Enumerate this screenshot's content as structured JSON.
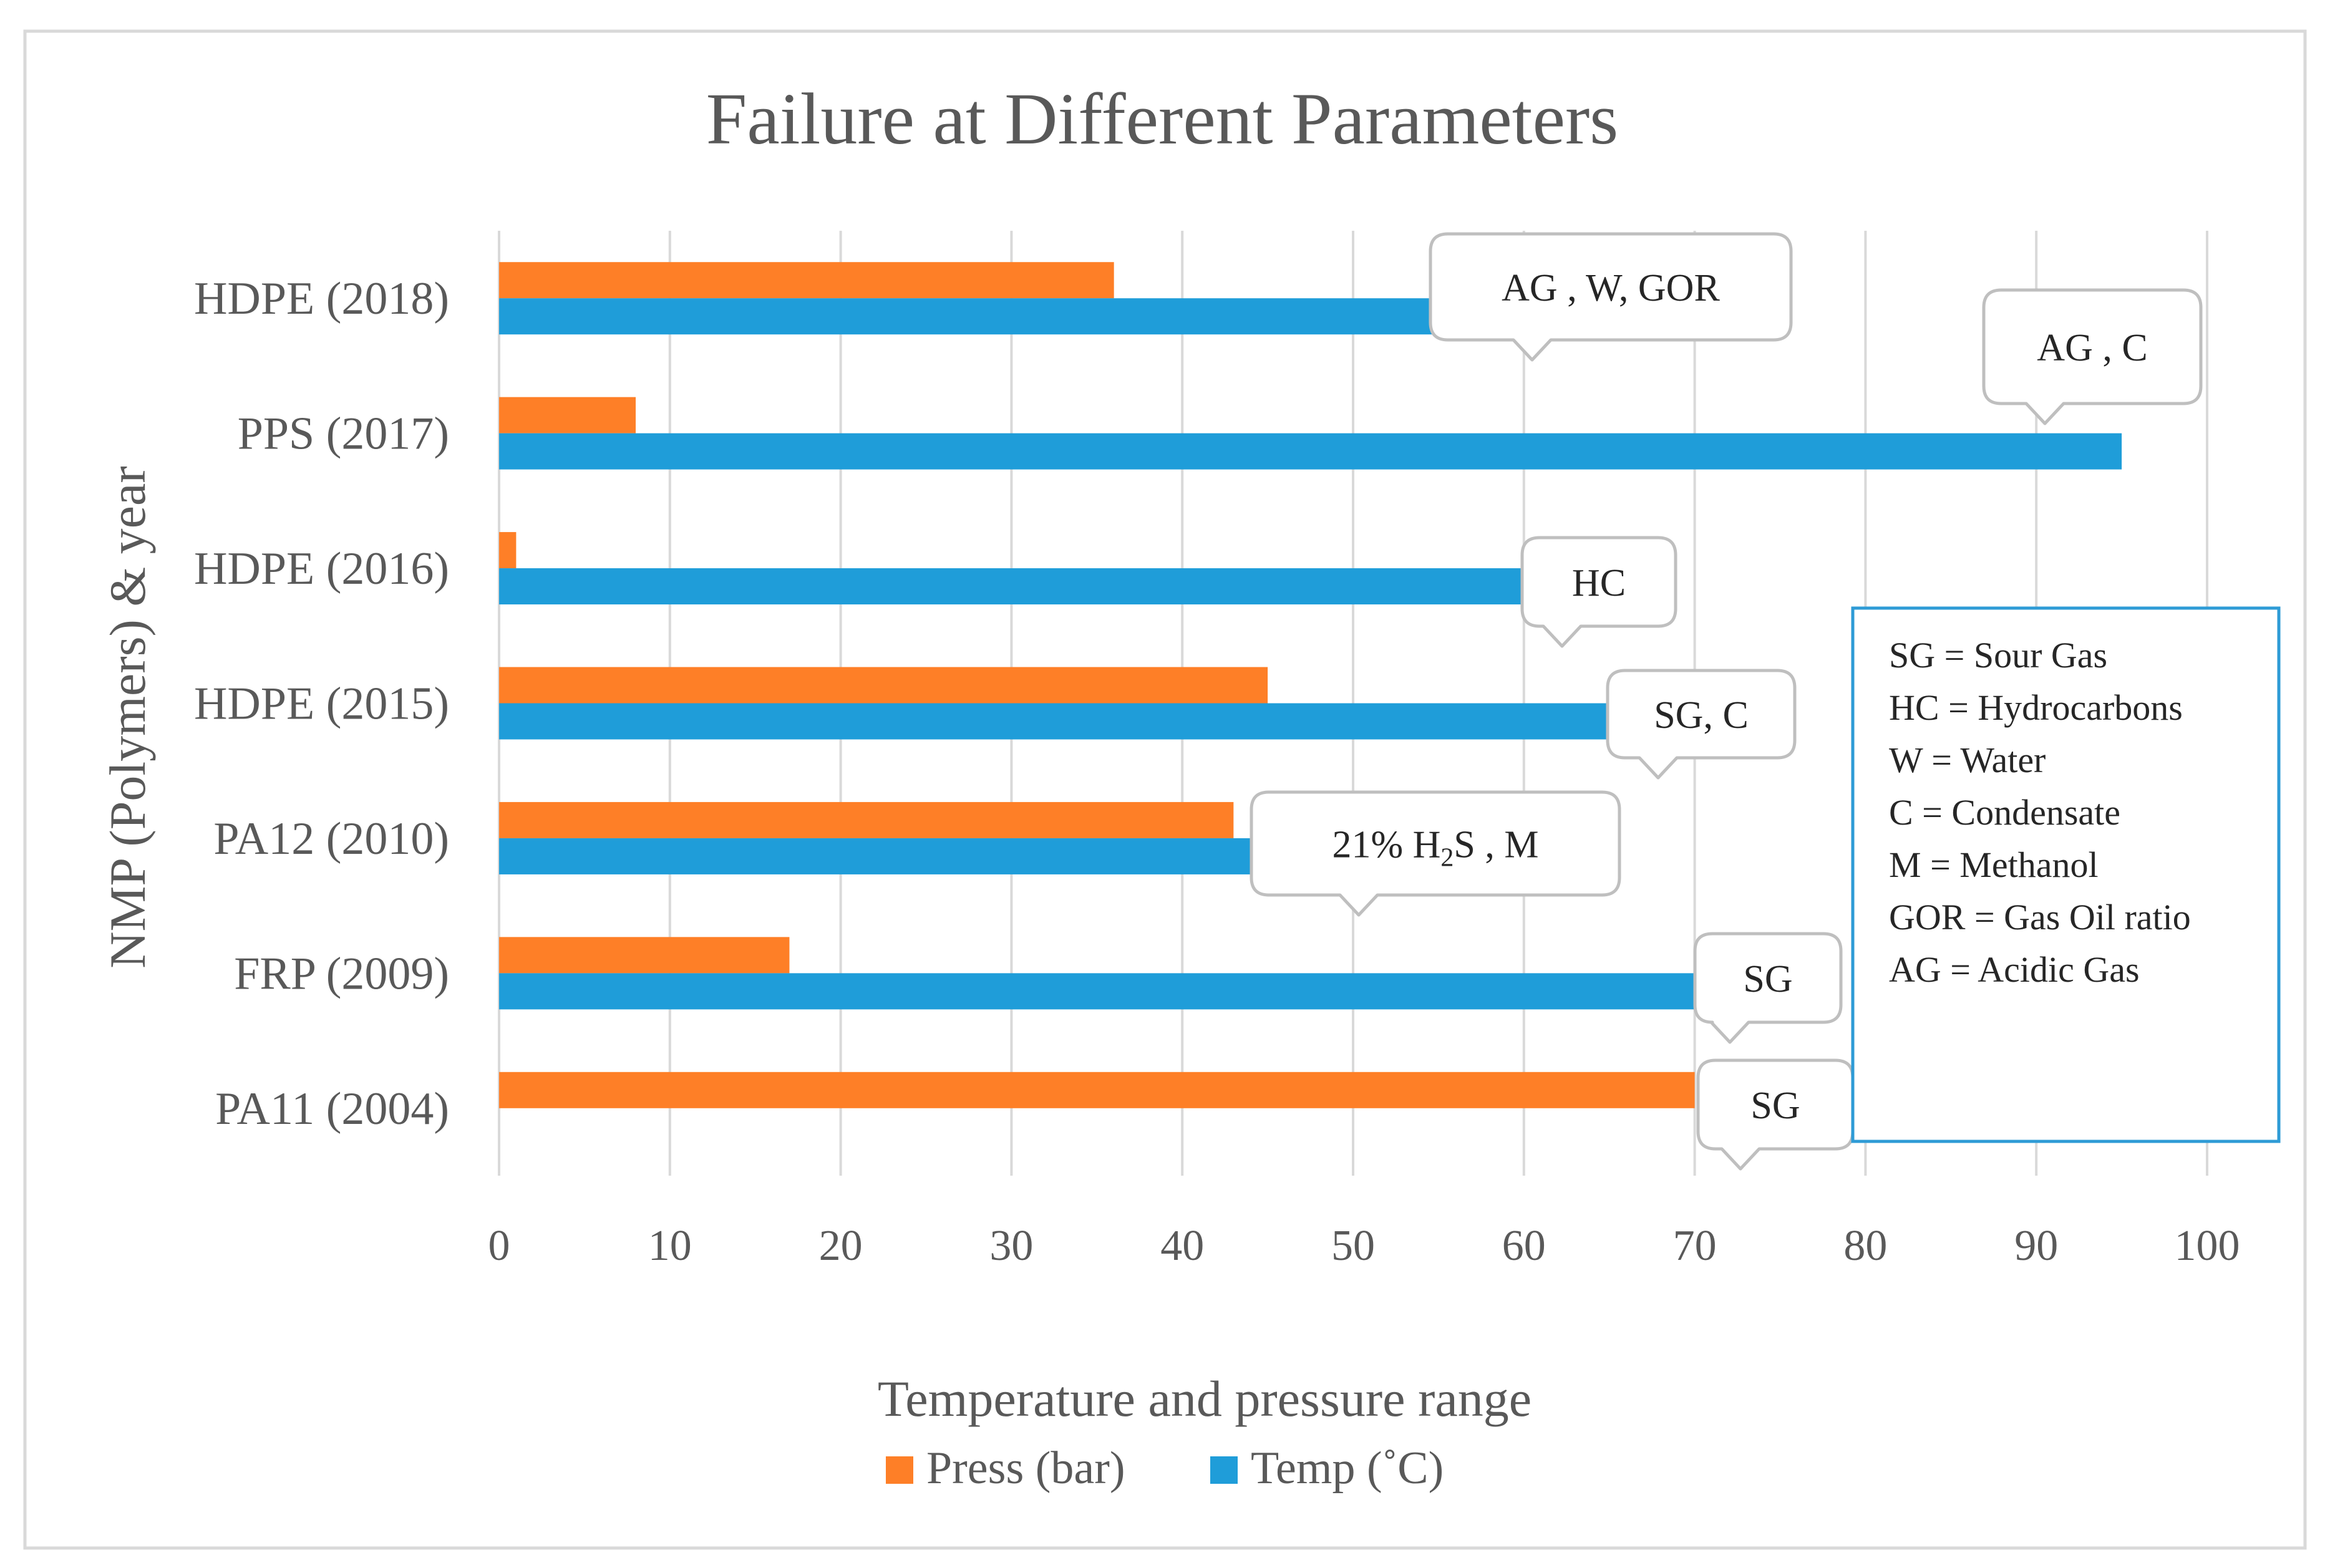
{
  "chart_data": {
    "type": "bar",
    "orientation": "horizontal",
    "title": "Failure at Different Parameters",
    "xlabel": "Temperature and pressure range",
    "ylabel": "NMP (Polymers) & year",
    "xlim": [
      0,
      100
    ],
    "xticks": [
      "0",
      "10",
      "20",
      "30",
      "40",
      "50",
      "60",
      "70",
      "80",
      "90",
      "100"
    ],
    "grid": true,
    "legend_position": "bottom",
    "categories": [
      "HDPE (2018)",
      "PPS (2017)",
      "HDPE (2016)",
      "HDPE (2015)",
      "PA12 (2010)",
      "FRP (2009)",
      "PA11 (2004)"
    ],
    "series": [
      {
        "name": "Press (bar)",
        "color": "#fe7f27",
        "values": [
          36,
          8,
          1,
          45,
          43,
          17,
          70
        ]
      },
      {
        "name": "Temp (˚C)",
        "color": "#1f9dd9",
        "values": [
          55,
          95,
          60,
          65,
          44,
          70,
          null
        ]
      }
    ],
    "annotations": [
      {
        "category": "HDPE (2018)",
        "text": "AG , W, GOR"
      },
      {
        "category": "PPS (2017)",
        "text": "AG , C"
      },
      {
        "category": "HDPE (2016)",
        "text": "HC"
      },
      {
        "category": "HDPE (2015)",
        "text": "SG, C"
      },
      {
        "category": "PA12 (2010)",
        "text_parts": [
          "21% H",
          "2",
          "S , M"
        ]
      },
      {
        "category": "FRP (2009)",
        "text": "SG"
      },
      {
        "category": "PA11 (2004)",
        "text": "SG"
      }
    ],
    "abbreviations": [
      "SG = Sour Gas",
      "HC = Hydrocarbons",
      "W = Water",
      "C = Condensate",
      "M = Methanol",
      "GOR = Gas Oil ratio",
      "AG = Acidic Gas"
    ]
  }
}
